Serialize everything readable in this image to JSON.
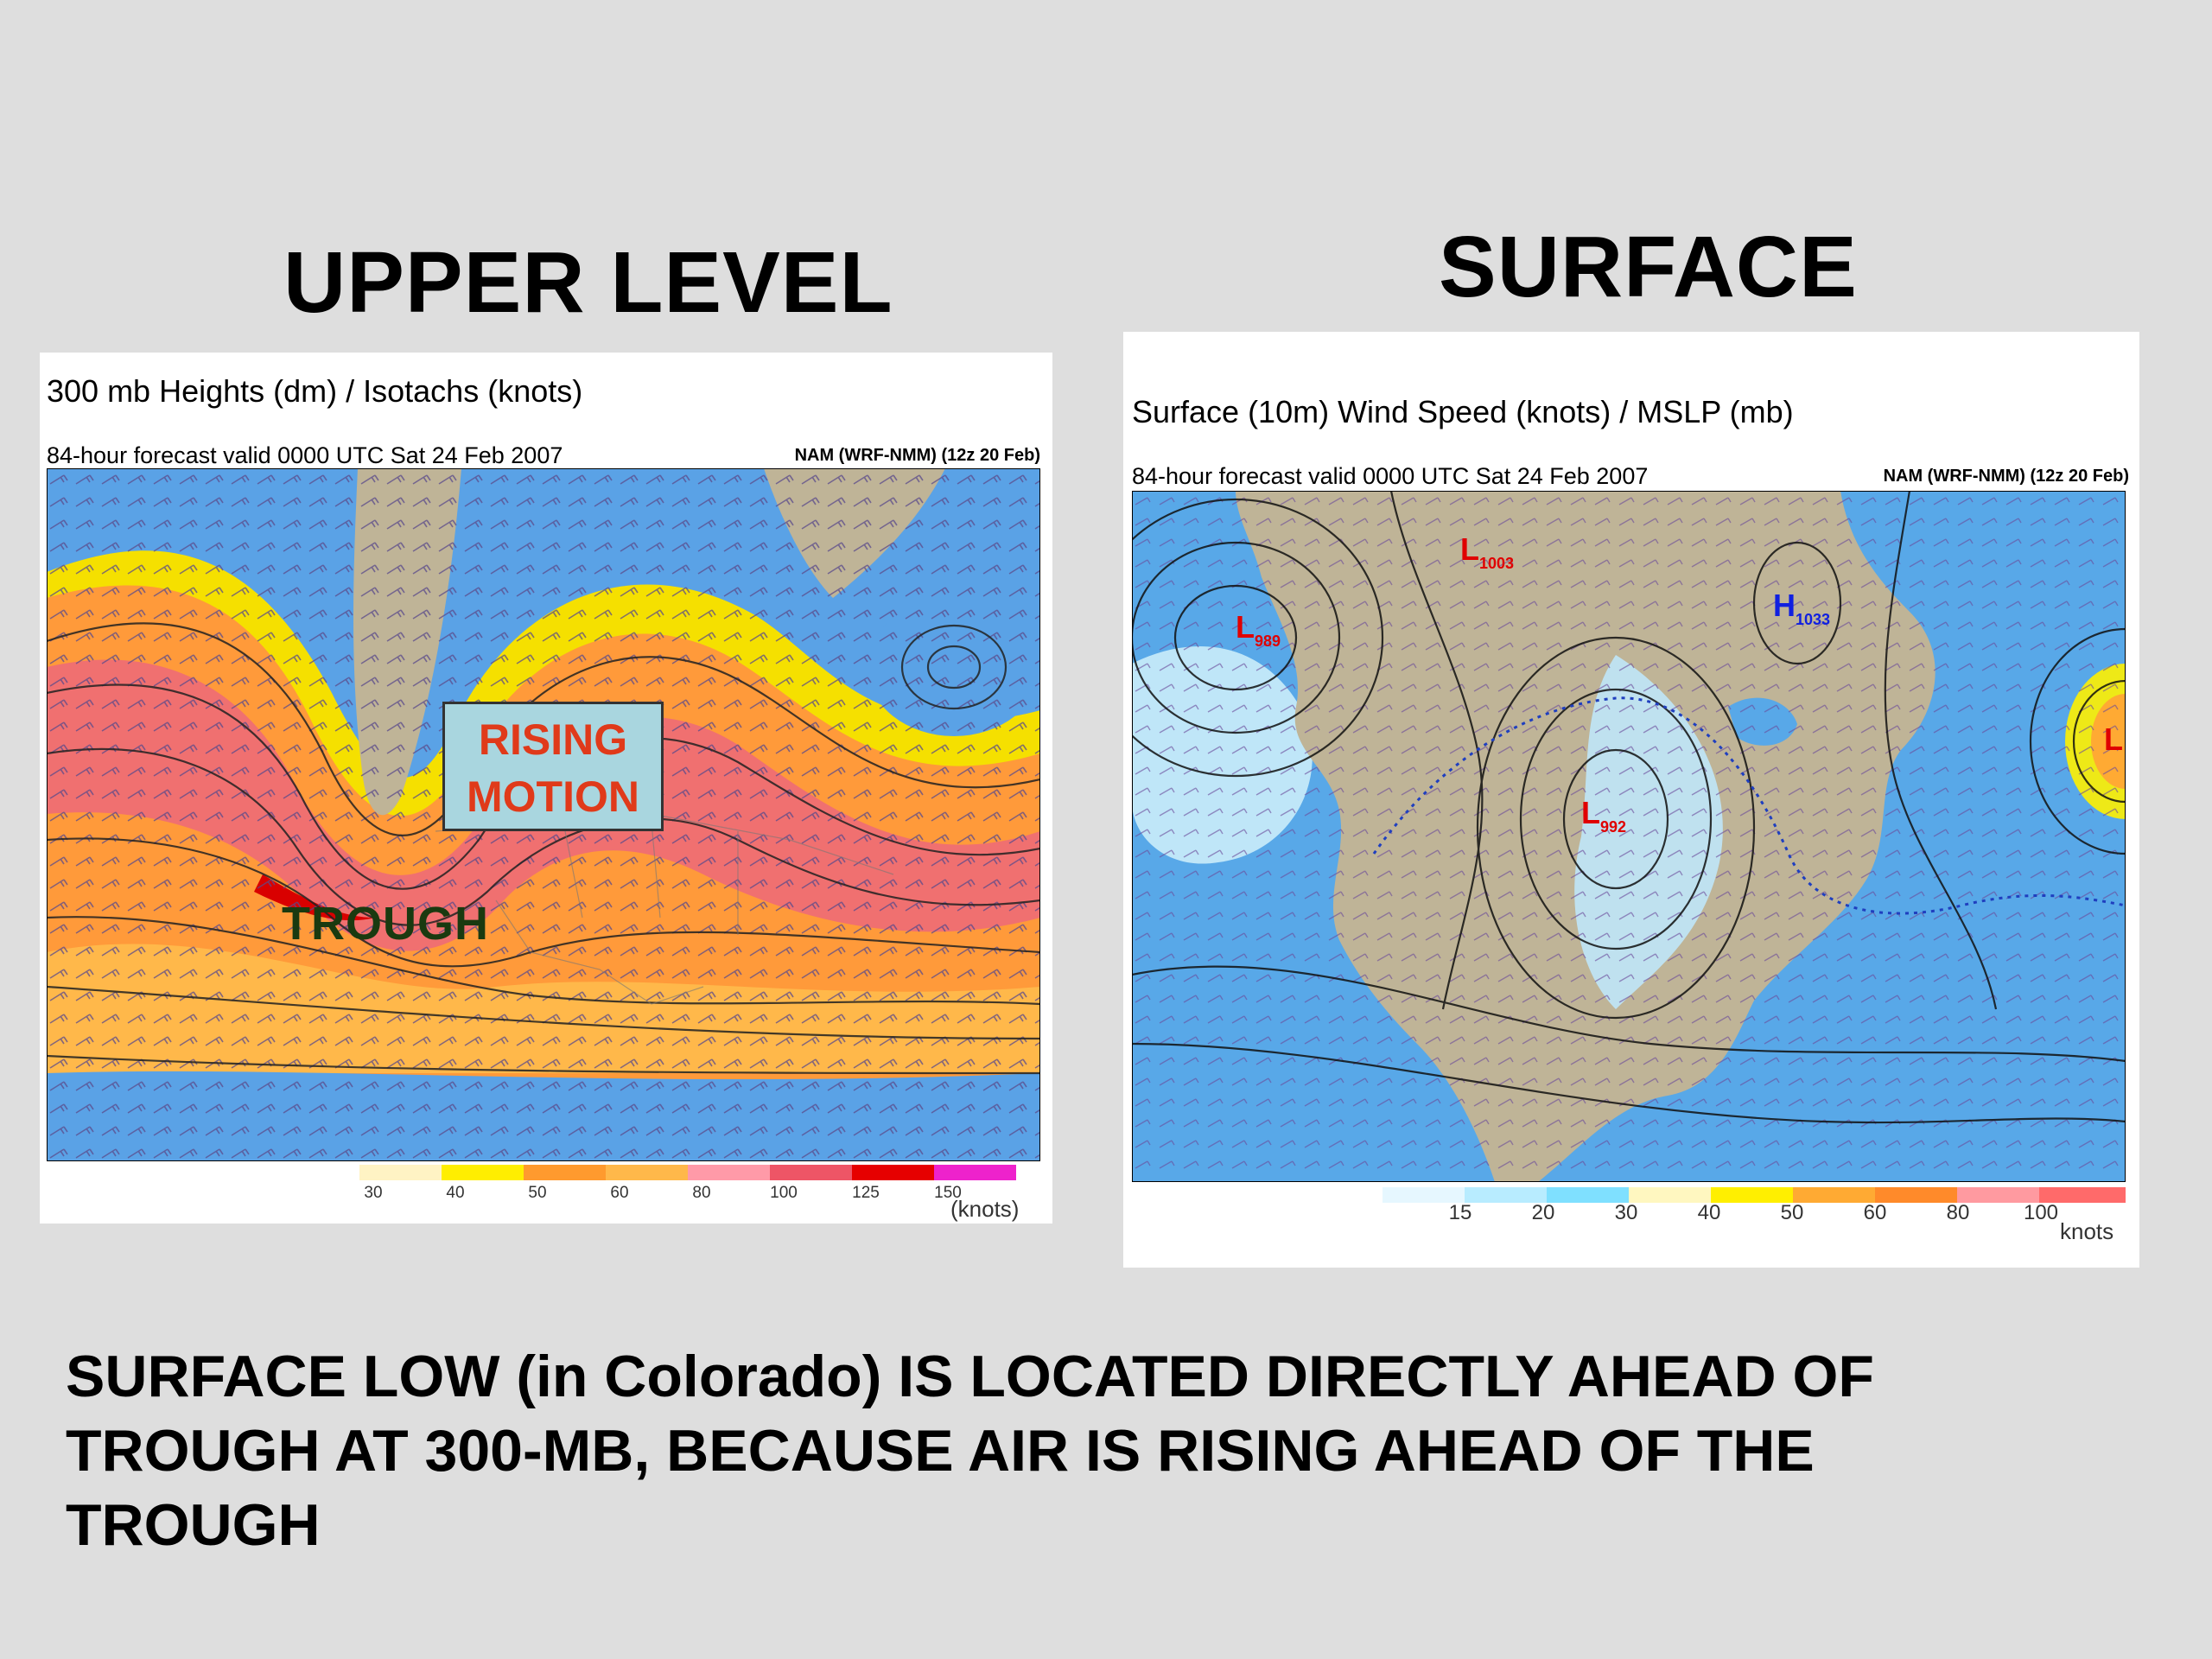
{
  "headings": {
    "upper": "UPPER LEVEL",
    "surface": "SURFACE"
  },
  "upper_map": {
    "title": "300 mb Heights (dm) / Isotachs (knots)",
    "subtitle": "84-hour forecast valid 0000 UTC Sat 24 Feb 2007",
    "model": "NAM (WRF-NMM) (12z 20 Feb)",
    "annotation_rising": [
      "RISING",
      "MOTION"
    ],
    "annotation_trough": "TROUGH",
    "legend_ticks": [
      "30",
      "40",
      "50",
      "60",
      "80",
      "100",
      "125",
      "150"
    ],
    "legend_units": "(knots)",
    "legend_colors": [
      "#fff3c4",
      "#ffee00",
      "#ff9a2e",
      "#ffb84a",
      "#ff9aa8",
      "#ee5566",
      "#e60000",
      "#ee22cc"
    ],
    "colors": {
      "blue": "#5aa2e6",
      "yellow": "#f5e000",
      "orange": "#ff9a3a",
      "pink": "#f07070",
      "land": "#bfb497"
    }
  },
  "surface_map": {
    "title": "Surface (10m) Wind Speed (knots) / MSLP (mb)",
    "subtitle": "84-hour forecast valid 0000 UTC Sat 24 Feb 2007",
    "model": "NAM (WRF-NMM) (12z 20 Feb)",
    "pressure_labels": [
      {
        "type": "L",
        "value": "1003"
      },
      {
        "type": "L",
        "value": "989"
      },
      {
        "type": "H",
        "value": "1033"
      },
      {
        "type": "L",
        "value": "992"
      },
      {
        "type": "L",
        "value": ""
      }
    ],
    "legend_ticks": [
      "15",
      "20",
      "30",
      "40",
      "50",
      "60",
      "80",
      "100"
    ],
    "legend_units": "knots",
    "legend_colors": [
      "#e6f7ff",
      "#b8ecff",
      "#7fe0ff",
      "#fff7c0",
      "#ffef00",
      "#ffaa33",
      "#ff8a2a",
      "#ff9aa0",
      "#ff6a6a"
    ],
    "colors": {
      "ocean": "#58a8e8",
      "light": "#bfe6f8",
      "land": "#bfb497",
      "contour": "#111111",
      "low": "#e00000",
      "high": "#1020e0"
    }
  },
  "footer": {
    "text": "SURFACE LOW (in Colorado) IS LOCATED DIRECTLY AHEAD OF TROUGH AT 300-MB, BECAUSE AIR IS RISING AHEAD OF THE TROUGH"
  }
}
